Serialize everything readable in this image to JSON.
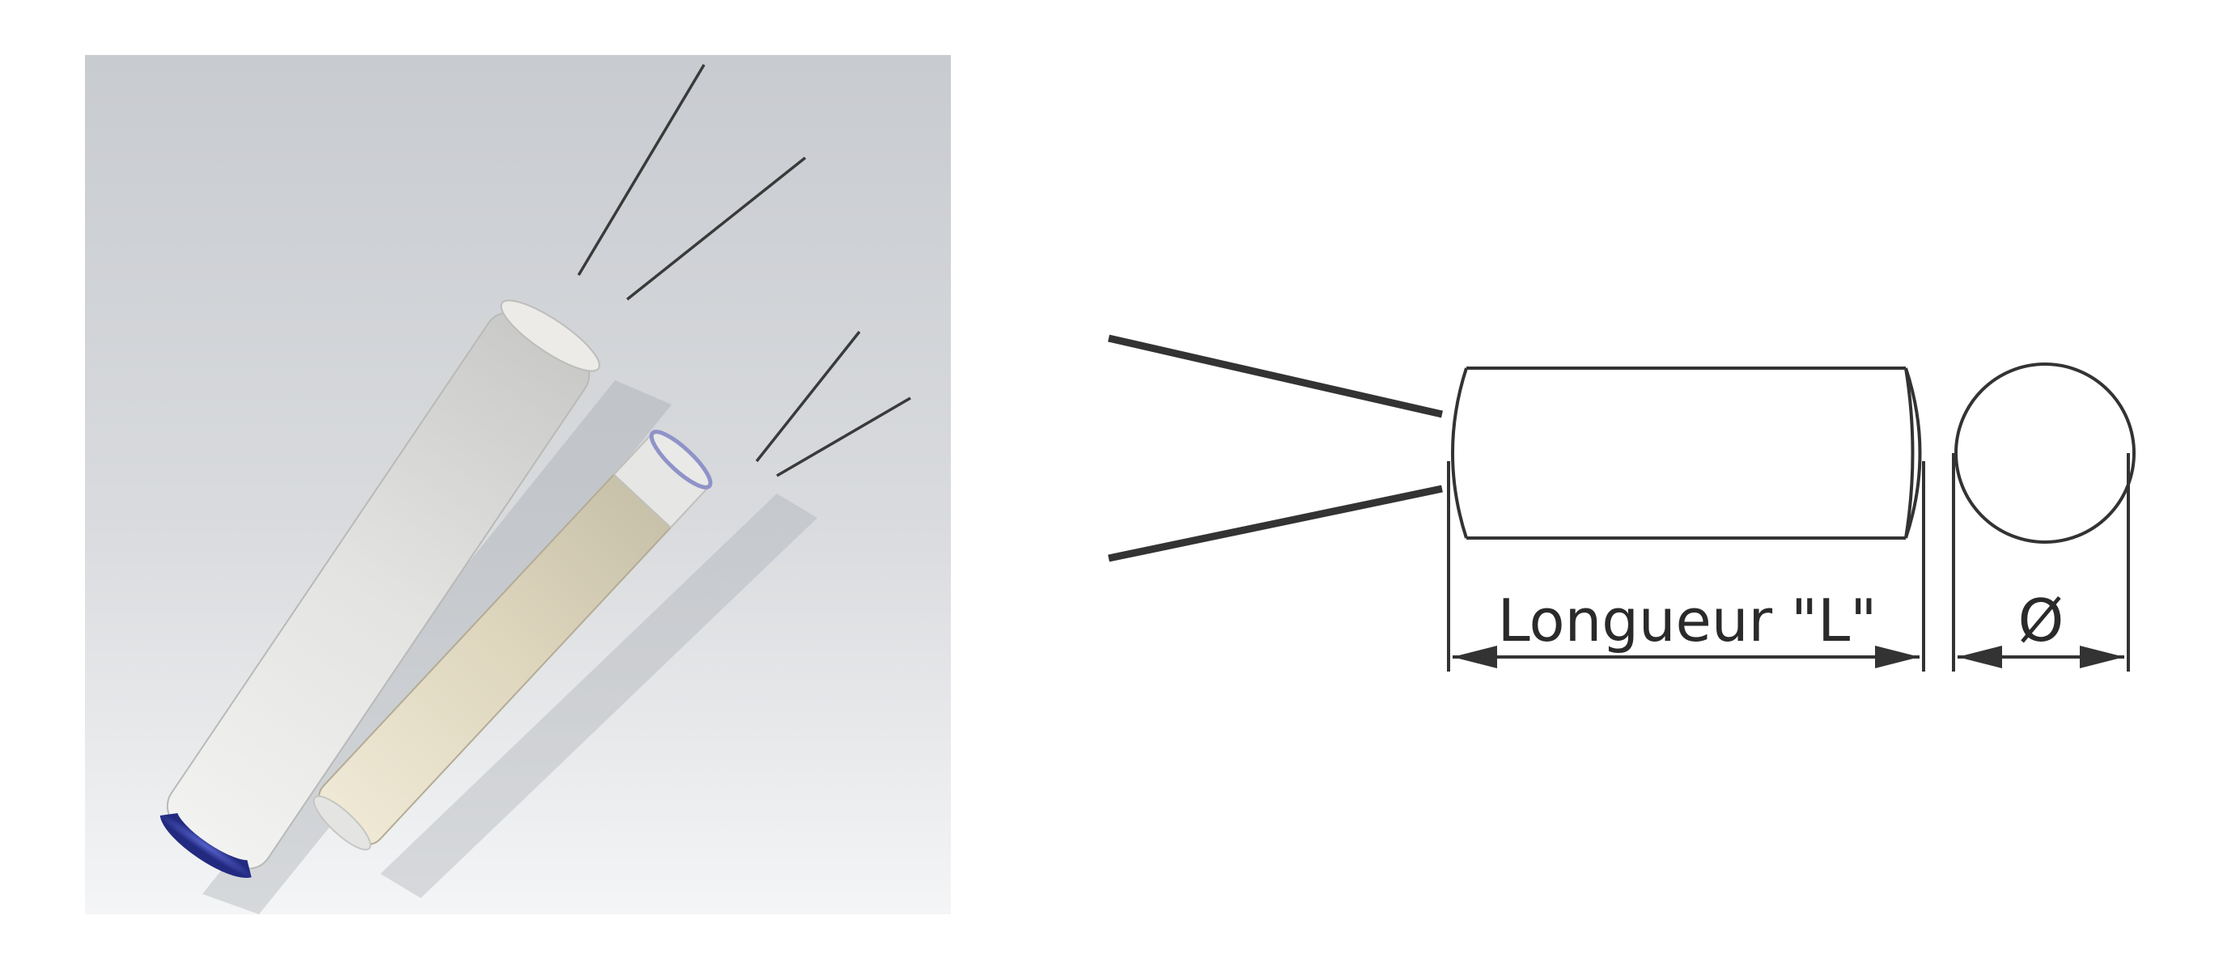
{
  "diagram": {
    "length_label": "Longueur \"L\"",
    "diameter_label": "Ø"
  },
  "colors": {
    "photo_bg_top": "#c9ccd1",
    "photo_bg_bottom": "#f2f3f4",
    "heater_body": "#e4e4e2",
    "heater_body_small": "#ddd6c0",
    "end_cap": "#3a44a8",
    "line": "#333333"
  }
}
